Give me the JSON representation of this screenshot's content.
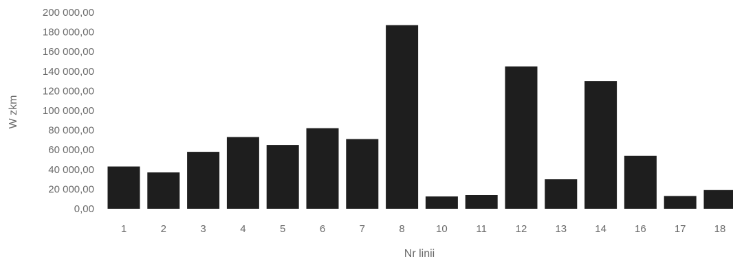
{
  "chart_data": {
    "type": "bar",
    "title": "",
    "xlabel": "Nr linii",
    "ylabel": "W zkm",
    "categories": [
      "1",
      "2",
      "3",
      "4",
      "5",
      "6",
      "7",
      "8",
      "10",
      "11",
      "12",
      "13",
      "14",
      "16",
      "17",
      "18"
    ],
    "values": [
      43000,
      37000,
      58000,
      73000,
      65000,
      82000,
      71000,
      187000,
      12500,
      14000,
      145000,
      30000,
      130000,
      54000,
      13000,
      19000
    ],
    "ylim": [
      0,
      200000
    ],
    "yticks": [
      "0,00",
      "20 000,00",
      "40 000,00",
      "60 000,00",
      "80 000,00",
      "100 000,00",
      "120 000,00",
      "140 000,00",
      "160 000,00",
      "180 000,00",
      "200 000,00"
    ],
    "grid": false,
    "legend": "none",
    "bar_color": "#1e1e1e",
    "text_color": "#6a6a6a"
  }
}
